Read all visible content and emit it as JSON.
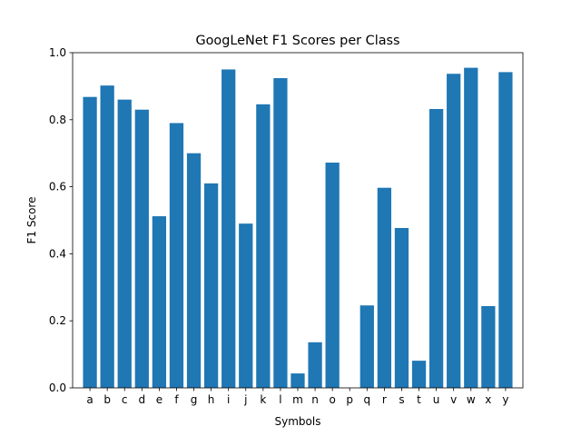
{
  "chart_data": {
    "type": "bar",
    "title": "GoogLeNet F1 Scores per Class",
    "xlabel": "Symbols",
    "ylabel": "F1 Score",
    "categories": [
      "a",
      "b",
      "c",
      "d",
      "e",
      "f",
      "g",
      "h",
      "i",
      "j",
      "k",
      "l",
      "m",
      "n",
      "o",
      "p",
      "q",
      "r",
      "s",
      "t",
      "u",
      "v",
      "w",
      "x",
      "y"
    ],
    "values": [
      0.868,
      0.902,
      0.86,
      0.83,
      0.512,
      0.79,
      0.7,
      0.61,
      0.95,
      0.49,
      0.846,
      0.924,
      0.043,
      0.136,
      0.672,
      0.0,
      0.246,
      0.597,
      0.477,
      0.081,
      0.832,
      0.937,
      0.955,
      0.244,
      0.942
    ],
    "ylim": [
      0,
      1.0
    ],
    "yticks": [
      "0.0",
      "0.2",
      "0.4",
      "0.6",
      "0.8",
      "1.0"
    ],
    "grid": false,
    "bar_color": "#1f77b4"
  }
}
